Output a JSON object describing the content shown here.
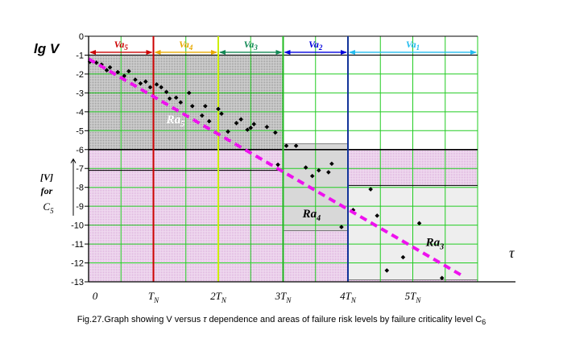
{
  "chart_data": {
    "type": "scatter",
    "title": "",
    "ylabel": "lg V",
    "xlabel": "τ",
    "ylim": [
      -13,
      0
    ],
    "yticks": [
      "0",
      "-1",
      "-2",
      "-3",
      "-4",
      "-5",
      "-6",
      "-7",
      "-8",
      "-9",
      "-10",
      "-11",
      "-12",
      "-13"
    ],
    "xtick_labels": [
      {
        "x": 0,
        "main": "0",
        "sub": ""
      },
      {
        "x": 1,
        "main": "T",
        "sub": "N"
      },
      {
        "x": 2,
        "main": "2T",
        "sub": "N"
      },
      {
        "x": 3,
        "main": "3T",
        "sub": "N"
      },
      {
        "x": 4,
        "main": "4T",
        "sub": "N"
      },
      {
        "x": 5,
        "main": "5T",
        "sub": "N"
      }
    ],
    "xlim": [
      0,
      6
    ],
    "tn_lines": [
      {
        "x": 1,
        "color": "#cc0000"
      },
      {
        "x": 2,
        "color": "#ccee00"
      },
      {
        "x": 3,
        "color": "#22bb22"
      },
      {
        "x": 4,
        "color": "#113399"
      }
    ],
    "va_zones": [
      {
        "label": "Va",
        "sub": "5",
        "x": [
          0,
          1
        ],
        "color": "#cc0000"
      },
      {
        "label": "Va",
        "sub": "4",
        "x": [
          1,
          2
        ],
        "color": "#e8a800"
      },
      {
        "label": "Va",
        "sub": "3",
        "x": [
          2,
          3
        ],
        "color": "#118855"
      },
      {
        "label": "Va",
        "sub": "2",
        "x": [
          3,
          4
        ],
        "color": "#0000dd"
      },
      {
        "label": "Va",
        "sub": "1",
        "x": [
          4,
          6
        ],
        "color": "#22bbee"
      }
    ],
    "ra_regions": [
      {
        "label": "Ra",
        "sub": "5",
        "x": [
          0,
          3
        ],
        "y": [
          -6,
          -1
        ],
        "fill": "#bbbbbb"
      },
      {
        "label": "Ra",
        "sub": "4",
        "x": [
          3,
          4
        ],
        "y": [
          -10.3,
          -5.7
        ],
        "fill": "#d8d8d8"
      },
      {
        "label": "Ra",
        "sub": "3",
        "x": [
          4,
          6
        ],
        "y": [
          -12.9,
          -7.9
        ],
        "fill": "#eeeeee"
      }
    ],
    "limit_annotation": {
      "line1": "[V]",
      "line2": "for",
      "line3": "C",
      "sub": "5"
    },
    "series": [
      {
        "type": "scatter",
        "points": [
          [
            0.02,
            -1.35
          ],
          [
            0.12,
            -1.4
          ],
          [
            0.2,
            -1.5
          ],
          [
            0.28,
            -1.8
          ],
          [
            0.33,
            -1.65
          ],
          [
            0.45,
            -1.9
          ],
          [
            0.55,
            -2.1
          ],
          [
            0.62,
            -1.85
          ],
          [
            0.72,
            -2.3
          ],
          [
            0.8,
            -2.5
          ],
          [
            0.88,
            -2.4
          ],
          [
            0.95,
            -2.7
          ],
          [
            1.05,
            -2.55
          ],
          [
            1.12,
            -2.7
          ],
          [
            1.2,
            -2.95
          ],
          [
            1.25,
            -3.3
          ],
          [
            1.35,
            -3.25
          ],
          [
            1.42,
            -3.5
          ],
          [
            1.55,
            -3.0
          ],
          [
            1.6,
            -3.7
          ],
          [
            1.75,
            -4.2
          ],
          [
            1.8,
            -3.7
          ],
          [
            1.86,
            -4.5
          ],
          [
            2.0,
            -3.85
          ],
          [
            2.05,
            -4.1
          ],
          [
            2.15,
            -5.05
          ],
          [
            2.28,
            -4.6
          ],
          [
            2.35,
            -4.4
          ],
          [
            2.45,
            -4.95
          ],
          [
            2.5,
            -4.85
          ],
          [
            2.55,
            -4.65
          ],
          [
            2.75,
            -4.8
          ],
          [
            2.88,
            -5.1
          ],
          [
            2.92,
            -6.8
          ],
          [
            3.05,
            -5.8
          ],
          [
            3.2,
            -5.8
          ],
          [
            3.35,
            -6.95
          ],
          [
            3.45,
            -7.4
          ],
          [
            3.55,
            -7.1
          ],
          [
            3.7,
            -7.2
          ],
          [
            3.75,
            -6.75
          ],
          [
            3.9,
            -10.1
          ],
          [
            4.08,
            -9.2
          ],
          [
            4.35,
            -8.1
          ],
          [
            4.45,
            -9.5
          ],
          [
            4.6,
            -12.4
          ],
          [
            4.85,
            -11.7
          ],
          [
            5.1,
            -9.9
          ],
          [
            5.45,
            -12.8
          ]
        ]
      },
      {
        "type": "line",
        "style": "dashed",
        "color": "#ee11ee",
        "points": [
          [
            0,
            -1.2
          ],
          [
            5.8,
            -12.75
          ]
        ]
      }
    ]
  },
  "caption": {
    "prefix": "Fig.27.Graph showing V versus ",
    "tau": "τ",
    "suffix": " dependence and areas of failure risk levels by failure criticality level C",
    "sub": "6"
  }
}
